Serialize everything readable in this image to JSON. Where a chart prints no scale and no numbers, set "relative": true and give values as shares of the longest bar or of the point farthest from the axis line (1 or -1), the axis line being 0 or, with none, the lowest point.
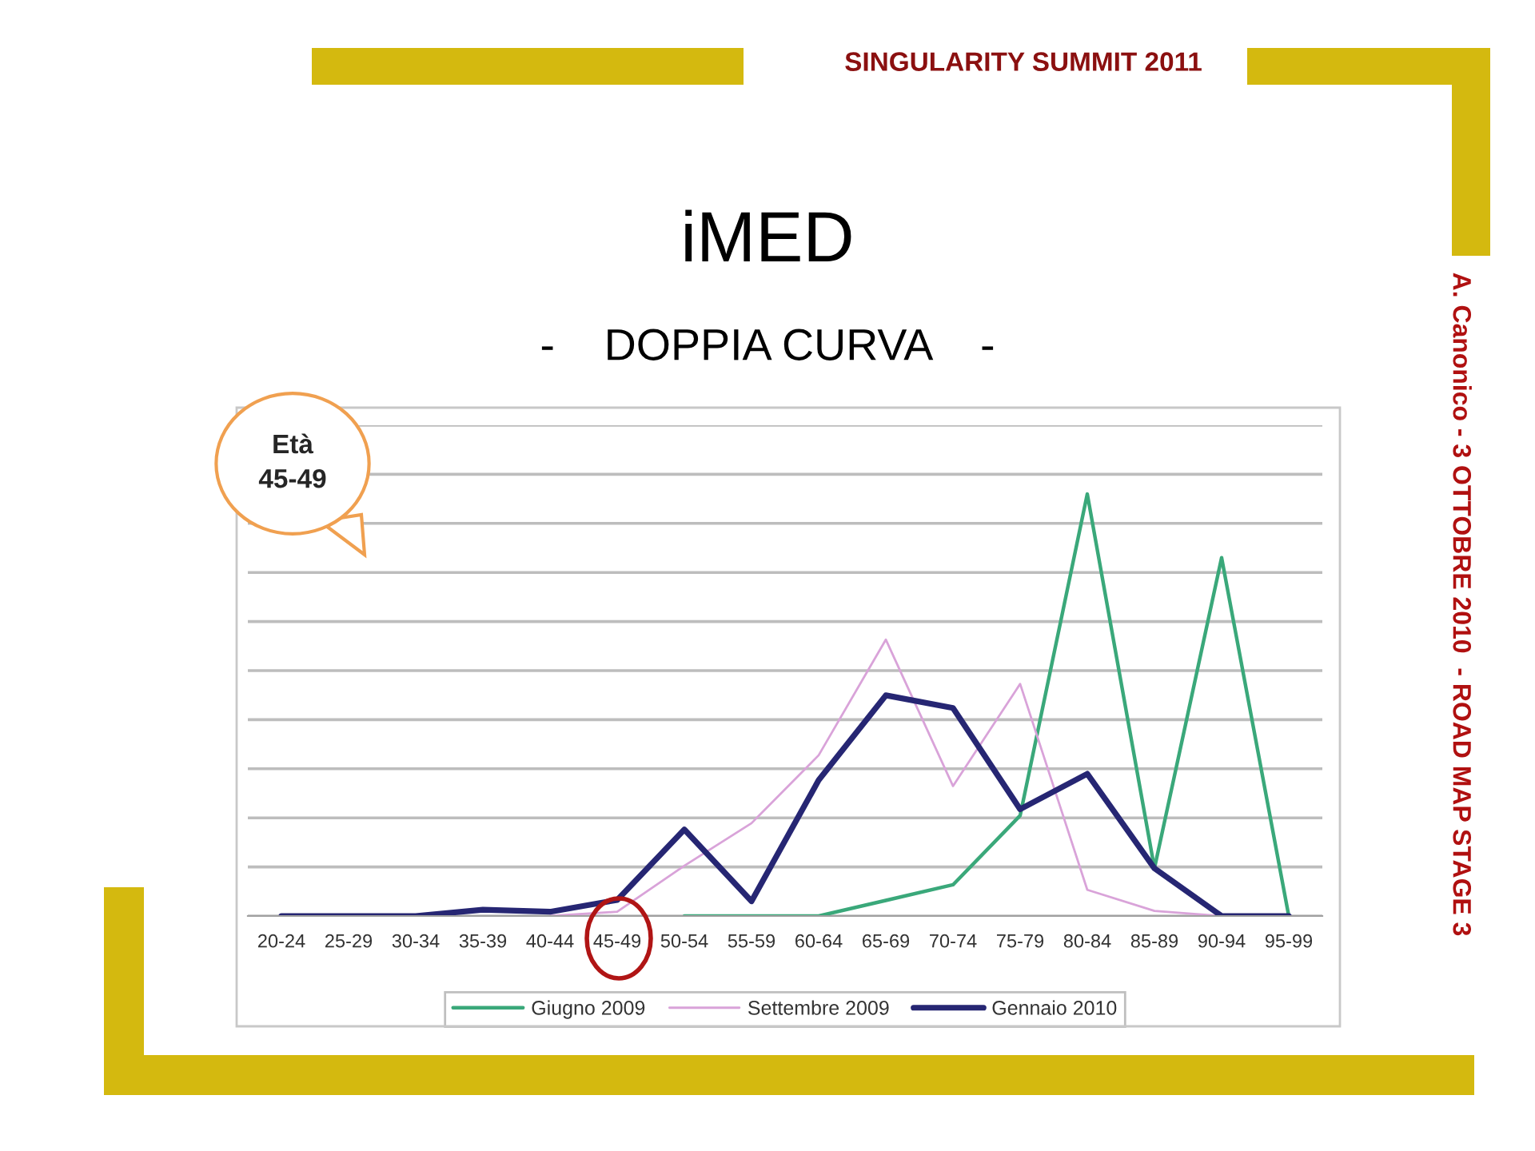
{
  "chart_data": {
    "type": "line",
    "title": "iMED",
    "subtitle": "-    DOPPIA CURVA    -",
    "categories": [
      "20-24",
      "25-29",
      "30-34",
      "35-39",
      "40-44",
      "45-49",
      "50-54",
      "55-59",
      "60-64",
      "65-69",
      "70-74",
      "75-79",
      "80-84",
      "85-89",
      "90-94",
      "95-99"
    ],
    "relative": true,
    "series": [
      {
        "name": "Giugno 2009",
        "color": "#3aa87a",
        "values": [
          null,
          null,
          null,
          null,
          null,
          null,
          0,
          0,
          0,
          0.037,
          0.074,
          0.238,
          1,
          0.113,
          0.849,
          0
        ]
      },
      {
        "name": "Settembre 2009",
        "color": "#d9a3d9",
        "values": [
          null,
          null,
          null,
          null,
          0,
          0.01,
          0.119,
          0.22,
          0.381,
          0.655,
          0.308,
          0.55,
          0.062,
          0.012,
          0,
          0
        ]
      },
      {
        "name": "Gennaio 2010",
        "color": "#262673",
        "values": [
          0,
          0,
          0,
          0.015,
          0.01,
          0.038,
          0.205,
          0.035,
          0.322,
          0.523,
          0.493,
          0.253,
          0.337,
          0.113,
          0,
          0
        ]
      }
    ],
    "grid": "y",
    "legend": "bottom",
    "annotations": [
      "SINGULARITY SUMMIT 2011",
      "A. Canonico - 3 OTTOBRE 2010  - ROAD MAP STAGE 3",
      "Età\n45-49"
    ]
  }
}
